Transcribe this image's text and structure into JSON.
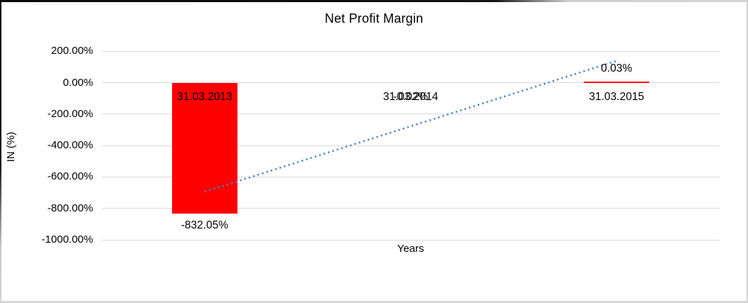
{
  "chart_data": {
    "type": "bar",
    "title": "Net Profit Margin",
    "xlabel": "Years",
    "ylabel": "IN (%)",
    "categories": [
      "31.03.2013",
      "31.03.2014",
      "31.03.2015"
    ],
    "values": [
      -832.05,
      -0.02,
      0.03
    ],
    "data_labels": [
      "-832.05%",
      "-0.02%",
      "0.03%"
    ],
    "ylim": [
      -1000,
      200
    ],
    "ytick_step": 200,
    "ytick_values": [
      200,
      0,
      -200,
      -400,
      -600,
      -800,
      -1000
    ],
    "ytick_labels": [
      "200.00%",
      "0.00%",
      "-200.00%",
      "-400.00%",
      "-600.00%",
      "-800.00%",
      "-1000.00%"
    ],
    "grid": true,
    "legend": false,
    "bar_color": "#FF0000",
    "gridline_color": "#D9D9D9",
    "trendline": {
      "type": "linear",
      "style": "dotted",
      "color": "#4F81BD",
      "start_value": -693.4,
      "end_value": 138.7
    }
  }
}
